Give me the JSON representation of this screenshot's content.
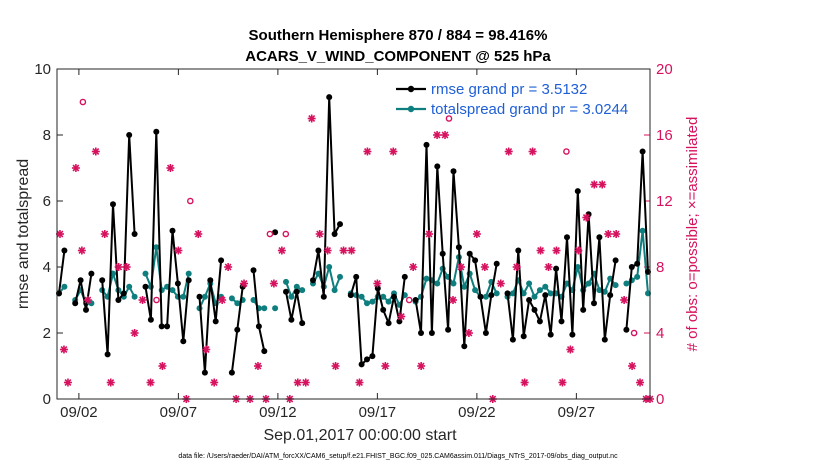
{
  "chart_data": {
    "type": "line",
    "title": "Southern Hemisphere 870 / 884 = 98.416%",
    "subtitle": "ACARS_V_WIND_COMPONENT @ 525 hPa",
    "xlabel": "Sep.01,2017 00:00:00 start",
    "ylabel": "rmse and totalspread",
    "ylabel_right": "# of obs: o=possible; ×=assimilated",
    "footnote": "data file: /Users/raeder/DAI/ATM_forcXX/CAM6_setup/f.e21.FHIST_BGC.f09_025.CAM6assim.011/Diags_NTrS_2017-09/obs_diag_output.nc",
    "xlim": [
      0.9,
      30.7
    ],
    "ylim": [
      0,
      10
    ],
    "ylim_right": [
      0,
      20
    ],
    "xticks": [
      2,
      7,
      12,
      17,
      22,
      27
    ],
    "xtick_labels": [
      "09/02",
      "09/07",
      "09/12",
      "09/17",
      "09/22",
      "09/27"
    ],
    "yticks": [
      0,
      2,
      4,
      6,
      8,
      10
    ],
    "yticks_right": [
      0,
      4,
      8,
      12,
      16,
      20
    ],
    "legend_position": "top-right",
    "colors": {
      "rmse": "#000000",
      "totalspread": "#0e7e7e",
      "obs": "#d6125e"
    },
    "series": [
      {
        "name": "rmse",
        "legend": "rmse grand pr = 3.5132",
        "values": [
          3.2,
          4.5,
          null,
          2.9,
          3.6,
          2.7,
          3.8,
          null,
          3.6,
          1.35,
          5.9,
          3.0,
          3.2,
          8.0,
          5.0,
          null,
          3.4,
          2.4,
          8.1,
          2.2,
          2.2,
          5.1,
          3.5,
          1.75,
          3.6,
          null,
          3.1,
          0.8,
          3.6,
          2.35,
          4.2,
          null,
          0.8,
          2.1,
          3.4,
          null,
          3.9,
          2.2,
          1.45,
          null,
          5.05,
          null,
          3.25,
          2.4,
          3.25,
          2.3,
          null,
          3.6,
          4.5,
          3.1,
          9.15,
          5.0,
          5.3,
          null,
          3.15,
          3.7,
          1.05,
          1.2,
          1.3,
          3.35,
          2.7,
          2.3,
          3.1,
          2.35,
          3.7,
          null,
          3.0,
          2.0,
          7.7,
          2.0,
          7.05,
          4.4,
          2.1,
          6.9,
          4.6,
          1.6,
          4.4,
          4.2,
          3.1,
          2.0,
          3.15,
          4.1,
          null,
          3.2,
          1.8,
          4.5,
          1.9,
          3.0,
          2.7,
          2.35,
          3.15,
          1.95,
          3.95,
          2.35,
          4.9,
          1.95,
          6.3,
          2.7,
          5.6,
          2.9,
          4.9,
          1.8,
          3.15,
          4.2,
          null,
          2.1,
          4.0,
          4.1,
          7.5,
          3.85
        ]
      },
      {
        "name": "totalspread",
        "legend": "totalspread grand pr = 3.0244",
        "values": [
          3.2,
          3.4,
          null,
          3.0,
          3.3,
          2.9,
          2.9,
          null,
          3.3,
          3.1,
          3.8,
          3.3,
          3.1,
          3.4,
          3.1,
          null,
          3.8,
          3.4,
          4.6,
          3.3,
          3.4,
          3.3,
          3.1,
          3.1,
          3.8,
          null,
          2.75,
          3.1,
          3.5,
          2.9,
          3.1,
          null,
          3.05,
          2.9,
          3.0,
          null,
          3.0,
          2.75,
          2.75,
          null,
          2.75,
          null,
          3.55,
          3.1,
          3.4,
          3.3,
          null,
          3.5,
          3.8,
          3.4,
          4.0,
          3.3,
          3.7,
          null,
          3.2,
          3.15,
          3.1,
          2.9,
          2.95,
          3.1,
          3.1,
          2.95,
          3.2,
          2.85,
          3.15,
          null,
          2.95,
          3.1,
          3.65,
          3.6,
          3.5,
          3.95,
          3.7,
          3.5,
          4.3,
          3.4,
          3.8,
          3.3,
          3.1,
          3.1,
          3.55,
          3.2,
          null,
          3.1,
          3.2,
          3.6,
          3.2,
          3.5,
          3.1,
          3.3,
          3.4,
          3.2,
          3.2,
          3.1,
          3.5,
          3.3,
          4.0,
          3.3,
          3.5,
          3.8,
          3.3,
          3.25,
          3.65,
          3.45,
          null,
          3.5,
          3.6,
          3.7,
          5.1,
          3.2
        ]
      },
      {
        "name": "obs_possible",
        "marker": "o",
        "axis": "right",
        "points": [
          {
            "x": 2.2,
            "y": 18
          },
          {
            "x": 5.9,
            "y": 6
          },
          {
            "x": 7.6,
            "y": 12
          },
          {
            "x": 11.6,
            "y": 10
          },
          {
            "x": 12.4,
            "y": 10
          },
          {
            "x": 18.6,
            "y": 6
          },
          {
            "x": 20.6,
            "y": 17
          },
          {
            "x": 26.5,
            "y": 15
          },
          {
            "x": 29.9,
            "y": 4
          }
        ]
      },
      {
        "name": "obs_assimilated",
        "marker": "*",
        "axis": "right",
        "points": [
          {
            "x": 1.05,
            "y": 10
          },
          {
            "x": 1.25,
            "y": 3
          },
          {
            "x": 1.45,
            "y": 1
          },
          {
            "x": 1.85,
            "y": 14
          },
          {
            "x": 2.15,
            "y": 9
          },
          {
            "x": 2.45,
            "y": 6
          },
          {
            "x": 2.85,
            "y": 15
          },
          {
            "x": 3.3,
            "y": 10
          },
          {
            "x": 3.6,
            "y": 1
          },
          {
            "x": 4.0,
            "y": 8
          },
          {
            "x": 4.4,
            "y": 8
          },
          {
            "x": 4.8,
            "y": 4
          },
          {
            "x": 5.2,
            "y": 6
          },
          {
            "x": 5.6,
            "y": 1
          },
          {
            "x": 6.2,
            "y": 2
          },
          {
            "x": 6.6,
            "y": 14
          },
          {
            "x": 7.0,
            "y": 9
          },
          {
            "x": 7.4,
            "y": 0
          },
          {
            "x": 8.0,
            "y": 10
          },
          {
            "x": 8.4,
            "y": 3
          },
          {
            "x": 8.8,
            "y": 1
          },
          {
            "x": 9.2,
            "y": 6
          },
          {
            "x": 9.5,
            "y": 8
          },
          {
            "x": 9.9,
            "y": 0
          },
          {
            "x": 10.3,
            "y": 7
          },
          {
            "x": 10.6,
            "y": 0
          },
          {
            "x": 11.0,
            "y": 2
          },
          {
            "x": 11.4,
            "y": 0
          },
          {
            "x": 11.8,
            "y": 7
          },
          {
            "x": 12.2,
            "y": 9
          },
          {
            "x": 12.6,
            "y": 0
          },
          {
            "x": 13.0,
            "y": 1
          },
          {
            "x": 13.4,
            "y": 1
          },
          {
            "x": 13.7,
            "y": 17
          },
          {
            "x": 14.1,
            "y": 10
          },
          {
            "x": 14.5,
            "y": 9
          },
          {
            "x": 14.9,
            "y": 2
          },
          {
            "x": 15.3,
            "y": 9
          },
          {
            "x": 15.7,
            "y": 9
          },
          {
            "x": 16.1,
            "y": 1
          },
          {
            "x": 16.5,
            "y": 15
          },
          {
            "x": 17.0,
            "y": 7
          },
          {
            "x": 17.4,
            "y": 2
          },
          {
            "x": 17.8,
            "y": 15
          },
          {
            "x": 18.2,
            "y": 5
          },
          {
            "x": 18.8,
            "y": 8
          },
          {
            "x": 19.2,
            "y": 2
          },
          {
            "x": 19.6,
            "y": 10
          },
          {
            "x": 20.0,
            "y": 16
          },
          {
            "x": 20.4,
            "y": 16
          },
          {
            "x": 20.8,
            "y": 6
          },
          {
            "x": 21.2,
            "y": 8
          },
          {
            "x": 21.6,
            "y": 4
          },
          {
            "x": 22.0,
            "y": 10
          },
          {
            "x": 22.4,
            "y": 8
          },
          {
            "x": 22.8,
            "y": 0
          },
          {
            "x": 23.2,
            "y": 7
          },
          {
            "x": 23.6,
            "y": 15
          },
          {
            "x": 24.0,
            "y": 8
          },
          {
            "x": 24.4,
            "y": 1
          },
          {
            "x": 24.8,
            "y": 15
          },
          {
            "x": 25.2,
            "y": 9
          },
          {
            "x": 25.6,
            "y": 8
          },
          {
            "x": 26.0,
            "y": 9
          },
          {
            "x": 26.3,
            "y": 1
          },
          {
            "x": 26.7,
            "y": 3
          },
          {
            "x": 27.1,
            "y": 9
          },
          {
            "x": 27.5,
            "y": 11
          },
          {
            "x": 27.9,
            "y": 13
          },
          {
            "x": 28.3,
            "y": 13
          },
          {
            "x": 28.6,
            "y": 10
          },
          {
            "x": 29.0,
            "y": 10
          },
          {
            "x": 29.4,
            "y": 6
          },
          {
            "x": 29.8,
            "y": 2
          },
          {
            "x": 30.2,
            "y": 1
          },
          {
            "x": 30.5,
            "y": 0
          },
          {
            "x": 30.7,
            "y": 0
          }
        ]
      }
    ]
  }
}
